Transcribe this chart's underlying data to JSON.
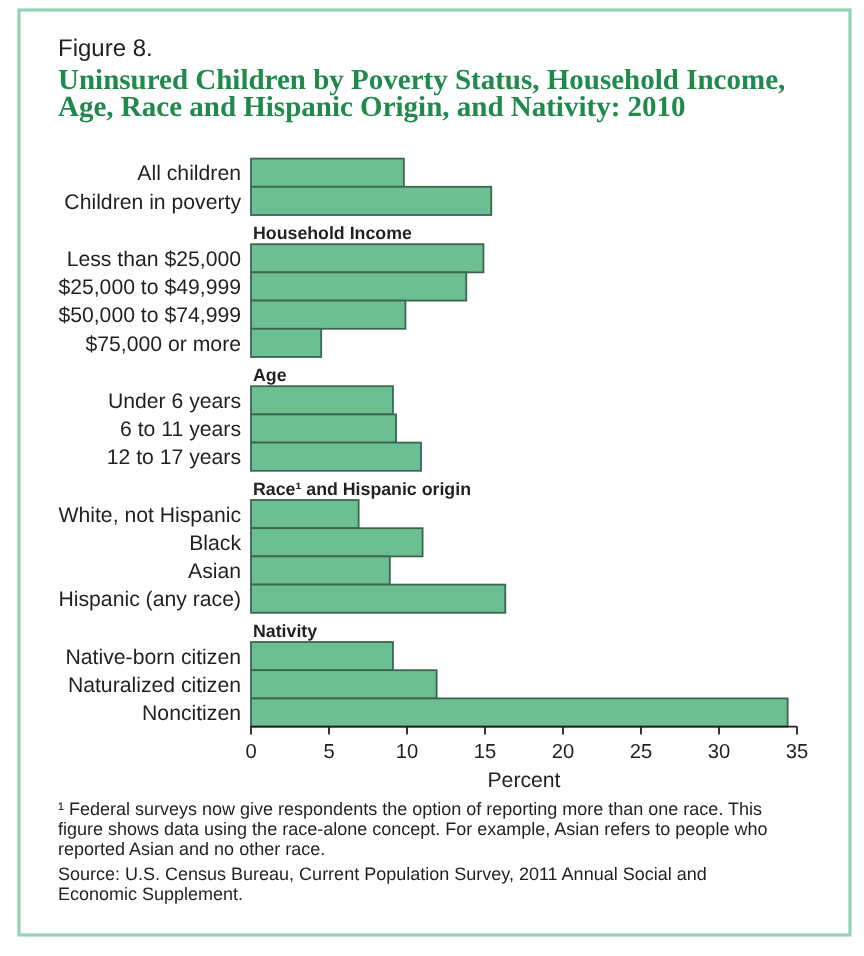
{
  "chart_data": [
    {
      "type": "bar",
      "orientation": "horizontal",
      "title": "Uninsured Children by Poverty Status, Household Income, Age, Race and Hispanic Origin, and Nativity: 2010",
      "annotations": [
        "Figure 8."
      ],
      "categories": [
        "All children",
        "Children in poverty"
      ],
      "values": [
        9.8,
        15.4
      ],
      "color": "#6cbf93",
      "xlim": [
        0,
        35
      ],
      "tick_labels": "y"
    },
    {
      "type": "bar",
      "orientation": "horizontal",
      "title": "Household Income",
      "categories": [
        "Less than $25,000",
        "$25,000 to $49,999",
        "$50,000 to $74,999",
        "$75,000 or more"
      ],
      "values": [
        14.9,
        13.8,
        9.9,
        4.5
      ],
      "color": "#6cbf93",
      "xlim": [
        0,
        35
      ],
      "tick_labels": "y"
    },
    {
      "type": "bar",
      "orientation": "horizontal",
      "title": "Age",
      "categories": [
        "Under 6 years",
        "6 to 11 years",
        "12 to 17 years"
      ],
      "values": [
        9.1,
        9.3,
        10.9
      ],
      "color": "#6cbf93",
      "xlim": [
        0,
        35
      ],
      "tick_labels": "y"
    },
    {
      "type": "bar",
      "orientation": "horizontal",
      "title": "Race¹ and Hispanic origin",
      "categories": [
        "White, not Hispanic",
        "Black",
        "Asian",
        "Hispanic (any race)"
      ],
      "values": [
        6.9,
        11.0,
        8.9,
        16.3
      ],
      "color": "#6cbf93",
      "xlim": [
        0,
        35
      ],
      "tick_labels": "y"
    },
    {
      "type": "bar",
      "orientation": "horizontal",
      "title": "Nativity",
      "categories": [
        "Native-born citizen",
        "Naturalized citizen",
        "Noncitizen"
      ],
      "values": [
        9.1,
        11.9,
        34.4
      ],
      "color": "#6cbf93",
      "xlim": [
        0,
        35
      ],
      "xticks": [
        0,
        5,
        10,
        15,
        20,
        25,
        30,
        35
      ],
      "xlabel": "Percent",
      "annotations": [
        "¹ Federal surveys now give respondents the option of reporting more than one race. This figure shows data using the race-alone concept. For example, Asian refers to people who reported Asian and no other race.",
        "Source: U.S. Census Bureau, Current Population Survey, 2011 Annual Social and Economic Supplement."
      ]
    }
  ]
}
